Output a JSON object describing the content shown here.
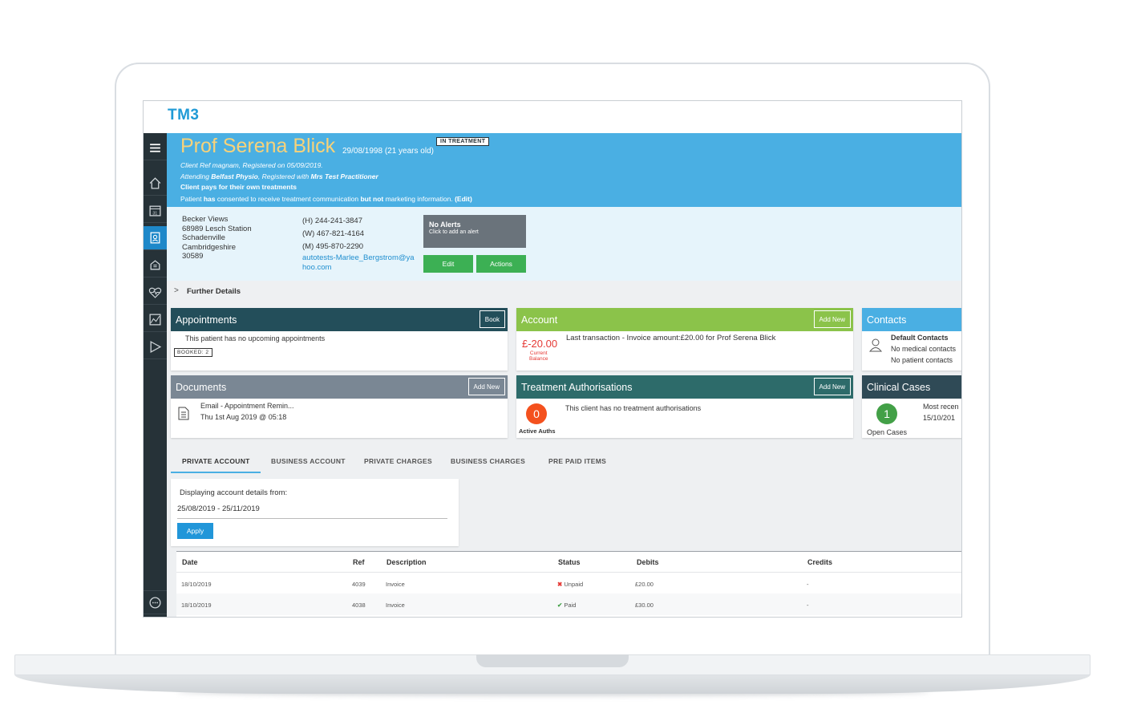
{
  "app": {
    "logo": "TM3"
  },
  "nav": {
    "items": [
      "menu",
      "home",
      "calendar",
      "patients",
      "finance",
      "health",
      "reports",
      "send"
    ],
    "chat": "chat"
  },
  "patient": {
    "name": "Prof Serena Blick",
    "dob": "29/08/1998 (21 years old)",
    "status": "IN TREATMENT",
    "ref_line": "Client Ref magnam, Registered on 05/09/2019.",
    "attending_prefix": "Attending ",
    "clinic": "Belfast Physio",
    "registered_prefix": ", Registered with ",
    "practitioner": "Mrs Test Practitioner",
    "payment_line": "Client pays for their own treatments",
    "consent_1": "Patient ",
    "consent_2": "has",
    "consent_3": " consented to receive treatment communication ",
    "consent_4": "but not",
    "consent_5": " marketing information. ",
    "consent_edit": "(Edit)"
  },
  "address": [
    "Becker Views",
    "68989 Lesch Station",
    "Schadenville",
    "Cambridgeshire",
    "30589"
  ],
  "phones": [
    "(H) 244-241-3847",
    "(W) 467-821-4164",
    "(M) 495-870-2290"
  ],
  "email": "autotests-Marlee_Bergstrom@yahoo.com",
  "alerts": {
    "title": "No Alerts",
    "subtitle": "Click to add an alert"
  },
  "buttons": {
    "edit": "Edit",
    "actions": "Actions"
  },
  "further_details": "Further Details",
  "appointments": {
    "title": "Appointments",
    "button": "Book",
    "text": "This patient has no upcoming appointments",
    "badge": "BOOKED: 2",
    "color": "#234e5a"
  },
  "account": {
    "title": "Account",
    "button": "Add New",
    "balance": "£-20.00",
    "balance_label_1": "Current",
    "balance_label_2": "Balance",
    "text": "Last transaction - Invoice amount:£20.00 for Prof Serena Blick",
    "color": "#8bc34a"
  },
  "contacts": {
    "title": "Contacts",
    "heading": "Default Contacts",
    "line1": "No medical contacts",
    "line2": "No patient contacts",
    "color": "#4aafe3"
  },
  "documents": {
    "title": "Documents",
    "button": "Add New",
    "item_title": "Email - Appointment Remin...",
    "item_date": "Thu 1st Aug 2019 @ 05:18",
    "color": "#7a8794"
  },
  "treatment": {
    "title": "Treatment Authorisations",
    "button": "Add New",
    "count": "0",
    "count_label": "Active Auths",
    "text": "This client has no treatment authorisations",
    "color": "#2d6b6a"
  },
  "clinical": {
    "title": "Clinical Cases",
    "count": "1",
    "count_label": "Open Cases",
    "line1": "Most recen",
    "line2": "15/10/201",
    "color": "#2f4a56"
  },
  "tabs": [
    "PRIVATE ACCOUNT",
    "BUSINESS ACCOUNT",
    "PRIVATE CHARGES",
    "BUSINESS CHARGES",
    "PRE PAID ITEMS"
  ],
  "filter": {
    "label": "Displaying account details from:",
    "range": "25/08/2019 - 25/11/2019",
    "apply": "Apply"
  },
  "table": {
    "headers": [
      "Date",
      "Ref",
      "Description",
      "Status",
      "Debits",
      "Credits"
    ],
    "rows": [
      {
        "date": "18/10/2019",
        "ref": "4039",
        "description": "Invoice",
        "status": "Unpaid",
        "debits": "£20.00",
        "credits": "-"
      },
      {
        "date": "18/10/2019",
        "ref": "4038",
        "description": "Invoice",
        "status": "Paid",
        "debits": "£30.00",
        "credits": "-"
      }
    ]
  }
}
